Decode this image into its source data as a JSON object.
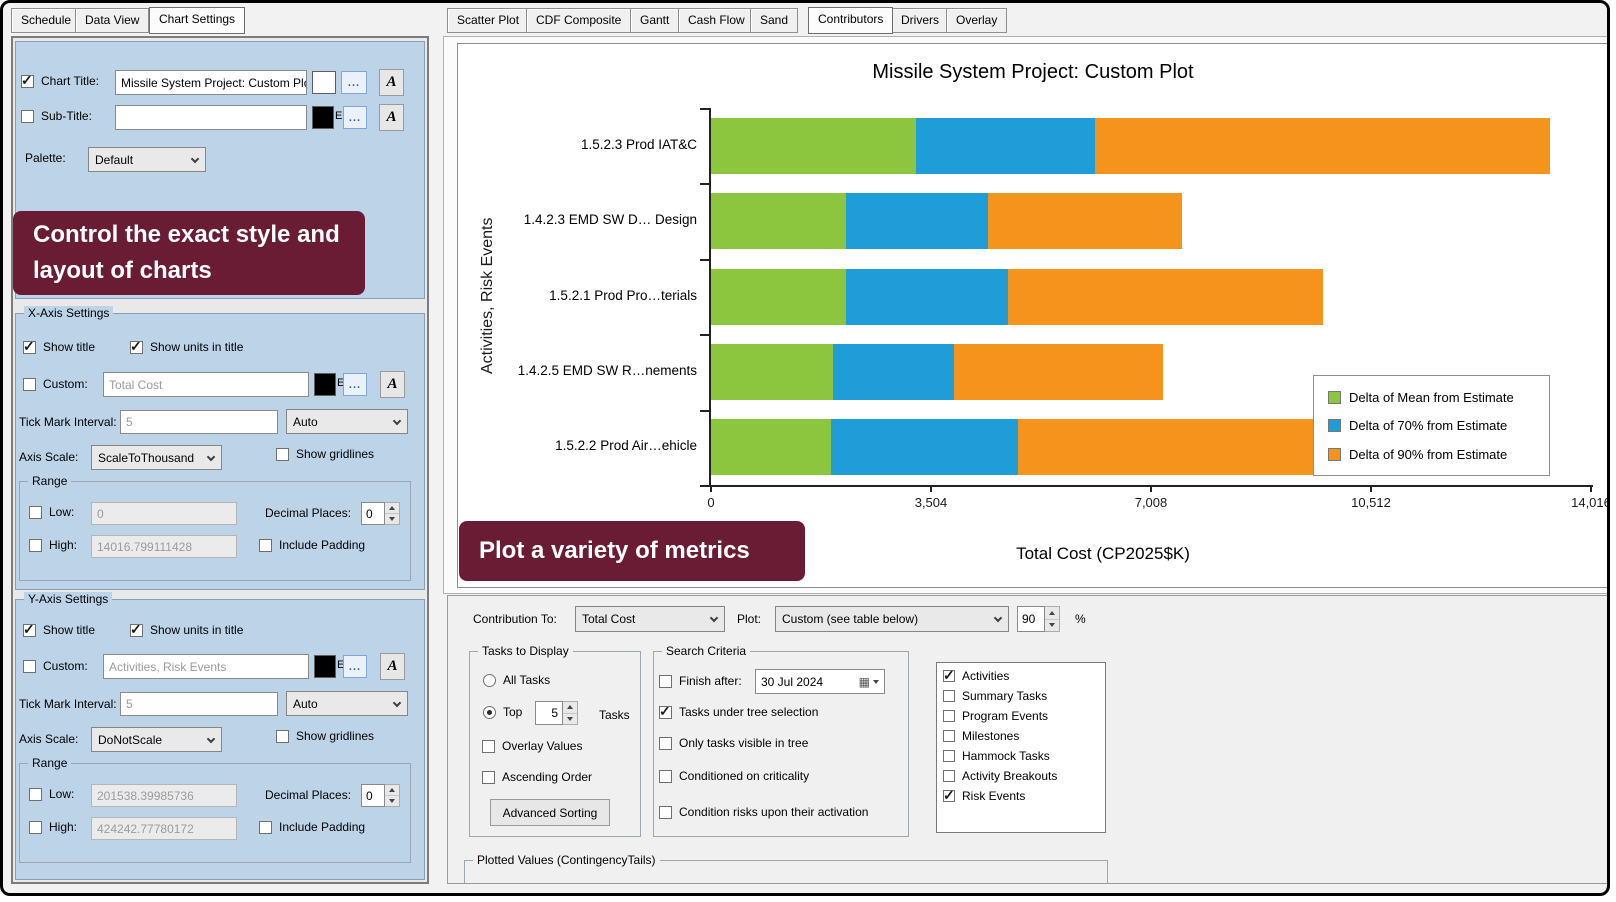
{
  "left_tabs": [
    {
      "label": "Schedule"
    },
    {
      "label": "Data View"
    },
    {
      "label": "Chart Settings"
    }
  ],
  "right_tabs": [
    {
      "label": "Scatter Plot"
    },
    {
      "label": "CDF Composite"
    },
    {
      "label": "Gantt"
    },
    {
      "label": "Cash Flow"
    },
    {
      "label": "Sand"
    },
    {
      "label": "Contributors"
    },
    {
      "label": "Drivers"
    },
    {
      "label": "Overlay"
    }
  ],
  "callouts": {
    "style": "Control the exact style and layout of charts",
    "metrics": "Plot a variety of metrics"
  },
  "ui": {
    "ellipsis": "...",
    "font_button": "A",
    "edit_hint": "E",
    "calendar_icon": "▦"
  },
  "title_section": {
    "chart_title_label": "Chart Title:",
    "chart_title_checked": true,
    "chart_title_value": "Missile System  Project: Custom Plot",
    "chart_title_swatch": "#FFFFFF",
    "sub_title_label": "Sub-Title:",
    "sub_title_checked": false,
    "sub_title_value": "",
    "sub_title_swatch": "#000000",
    "palette_label": "Palette:",
    "palette_value": "Default"
  },
  "x_axis": {
    "section_title": "X-Axis Settings",
    "show_title_label": "Show title",
    "show_title_checked": true,
    "show_units_label": "Show units in title",
    "show_units_checked": true,
    "custom_label": "Custom:",
    "custom_checked": false,
    "custom_value": "Total Cost",
    "custom_swatch": "#000000",
    "tick_interval_label": "Tick Mark Interval:",
    "tick_interval_value": "5",
    "tick_mode_value": "Auto",
    "axis_scale_label": "Axis Scale:",
    "axis_scale_value": "ScaleToThousand",
    "gridlines_label": "Show gridlines",
    "gridlines_checked": false,
    "range": {
      "title": "Range",
      "low_label": "Low:",
      "low_checked": false,
      "low_value": "0",
      "high_label": "High:",
      "high_checked": false,
      "high_value": "14016.799111428",
      "decimal_label": "Decimal Places:",
      "decimal_value": "0",
      "padding_label": "Include Padding",
      "padding_checked": false
    }
  },
  "y_axis": {
    "section_title": "Y-Axis Settings",
    "show_title_label": "Show title",
    "show_title_checked": true,
    "show_units_label": "Show units in title",
    "show_units_checked": true,
    "custom_label": "Custom:",
    "custom_checked": false,
    "custom_value": "Activities, Risk Events",
    "custom_swatch": "#000000",
    "tick_interval_label": "Tick Mark Interval:",
    "tick_interval_value": "5",
    "tick_mode_value": "Auto",
    "axis_scale_label": "Axis Scale:",
    "axis_scale_value": "DoNotScale",
    "gridlines_label": "Show gridlines",
    "gridlines_checked": false,
    "range": {
      "title": "Range",
      "low_label": "Low:",
      "low_checked": false,
      "low_value": "201538.39985736",
      "high_label": "High:",
      "high_checked": false,
      "high_value": "424242.77780172",
      "decimal_label": "Decimal Places:",
      "decimal_value": "0",
      "padding_label": "Include Padding",
      "padding_checked": false
    }
  },
  "bottom": {
    "contribution_label": "Contribution To:",
    "contribution_value": "Total Cost",
    "plot_label": "Plot:",
    "plot_value": "Custom (see table below)",
    "percent_value": "90",
    "percent_sign": "%",
    "tasks": {
      "title": "Tasks to Display",
      "all_tasks_label": "All Tasks",
      "all_tasks_selected": false,
      "top_label": "Top",
      "top_selected": true,
      "top_count": "5",
      "top_suffix": "Tasks",
      "overlay_label": "Overlay Values",
      "overlay_checked": false,
      "ascending_label": "Ascending Order",
      "ascending_checked": false,
      "advanced_button": "Advanced Sorting"
    },
    "search": {
      "title": "Search Criteria",
      "finish_label": "Finish after:",
      "finish_checked": false,
      "finish_date": "30 Jul  2024",
      "items": [
        {
          "label": "Tasks under tree selection",
          "checked": true
        },
        {
          "label": "Only tasks visible in tree",
          "checked": false
        },
        {
          "label": "Conditioned on criticality",
          "checked": false
        },
        {
          "label": "Condition risks upon their activation",
          "checked": false
        }
      ]
    },
    "types": [
      {
        "label": "Activities",
        "checked": true
      },
      {
        "label": "Summary Tasks",
        "checked": false
      },
      {
        "label": "Program Events",
        "checked": false
      },
      {
        "label": "Milestones",
        "checked": false
      },
      {
        "label": "Hammock Tasks",
        "checked": false
      },
      {
        "label": "Activity Breakouts",
        "checked": false
      },
      {
        "label": "Risk Events",
        "checked": true
      }
    ],
    "plotted_values_title": "Plotted Values (ContingencyTails)"
  },
  "chart_data": {
    "type": "bar",
    "orientation": "horizontal",
    "stacked": true,
    "title": "Missile System  Project: Custom Plot",
    "xlabel": "Total Cost (CP2025$K)",
    "ylabel": "Activities, Risk Events",
    "xlim": [
      0,
      14016
    ],
    "xticks": [
      0,
      3504,
      7008,
      10512,
      14016
    ],
    "xtick_labels": [
      "0",
      "3,504",
      "7,008",
      "10,512",
      "14,016"
    ],
    "categories": [
      "1.5.2.3 Prod IAT&C",
      "1.4.2.3 EMD SW D… Design",
      "1.5.2.1 Prod Pro…terials",
      "1.4.2.5 EMD SW R…nements",
      "1.5.2.2 Prod Air…ehicle"
    ],
    "series": [
      {
        "name": "Delta of Mean from Estimate",
        "color": "#8CC63F",
        "values": [
          3270,
          2150,
          2150,
          1940,
          1910
        ]
      },
      {
        "name": "Delta of 70% from Estimate",
        "color": "#1F9DD9",
        "values": [
          2840,
          2260,
          2580,
          1930,
          2980
        ]
      },
      {
        "name": "Delta of 90% from Estimate",
        "color": "#F5941D",
        "values": [
          7260,
          3090,
          5020,
          3330,
          5180
        ]
      }
    ],
    "legend_position": "right",
    "grid": false
  }
}
